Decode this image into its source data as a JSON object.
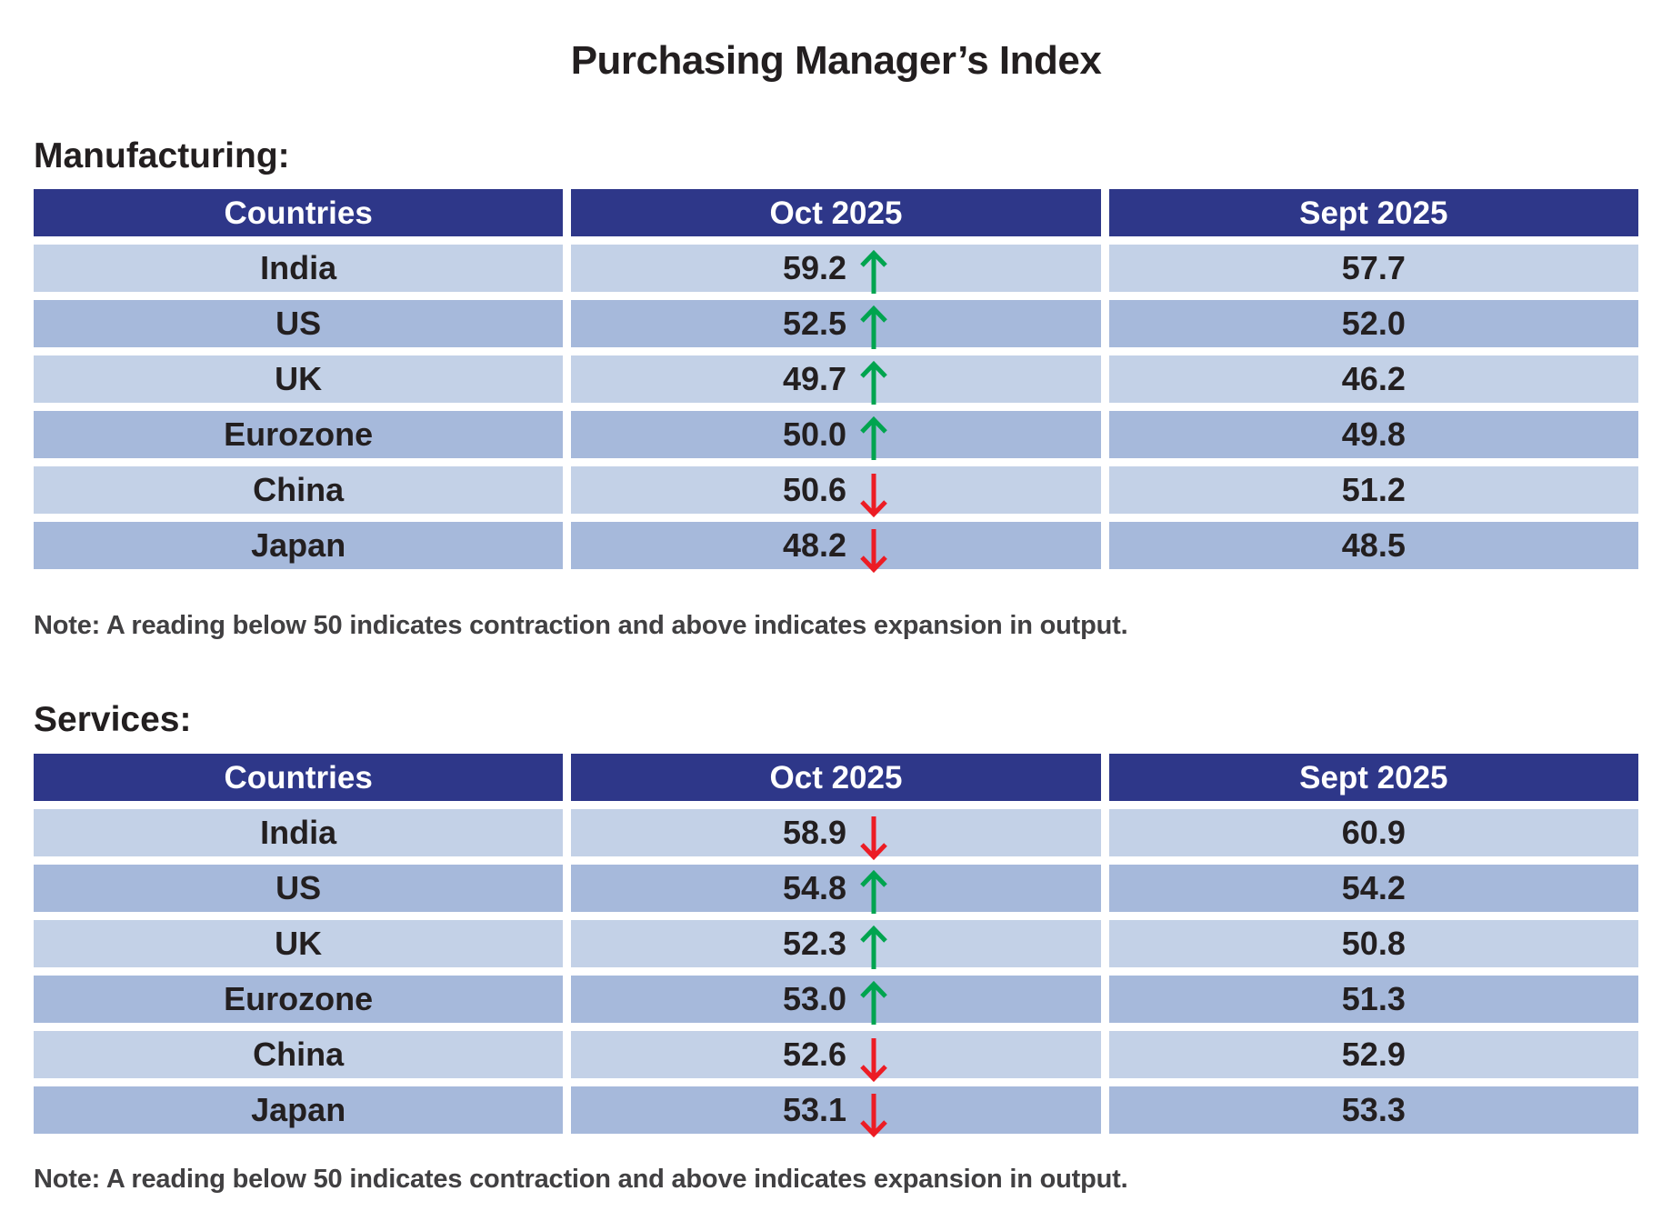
{
  "page": {
    "title": "Purchasing Manager’s Index"
  },
  "colors": {
    "header_bg": "#2E3789",
    "row_light": "#C3D1E7",
    "row_dark": "#A6B9DB",
    "arrow_up": "#00A44F",
    "arrow_down": "#EC1C24",
    "text_dark": "#231F20",
    "note_gray": "#414042"
  },
  "columns": [
    "Countries",
    "Oct 2025",
    "Sept 2025"
  ],
  "sections": [
    {
      "label": "Manufacturing:",
      "note": "Note: A reading below 50 indicates contraction and above indicates expansion in output.",
      "rows": [
        {
          "country": "India",
          "oct": "59.2",
          "trend": "up",
          "sept": "57.7"
        },
        {
          "country": "US",
          "oct": "52.5",
          "trend": "up",
          "sept": "52.0"
        },
        {
          "country": "UK",
          "oct": "49.7",
          "trend": "up",
          "sept": "46.2"
        },
        {
          "country": "Eurozone",
          "oct": "50.0",
          "trend": "up",
          "sept": "49.8"
        },
        {
          "country": "China",
          "oct": "50.6",
          "trend": "down",
          "sept": "51.2"
        },
        {
          "country": "Japan",
          "oct": "48.2",
          "trend": "down",
          "sept": "48.5"
        }
      ]
    },
    {
      "label": "Services:",
      "note": "Note: A reading below 50 indicates contraction and above indicates expansion in output.",
      "rows": [
        {
          "country": "India",
          "oct": "58.9",
          "trend": "down",
          "sept": "60.9"
        },
        {
          "country": "US",
          "oct": "54.8",
          "trend": "up",
          "sept": "54.2"
        },
        {
          "country": "UK",
          "oct": "52.3",
          "trend": "up",
          "sept": "50.8"
        },
        {
          "country": "Eurozone",
          "oct": "53.0",
          "trend": "up",
          "sept": "51.3"
        },
        {
          "country": "China",
          "oct": "52.6",
          "trend": "down",
          "sept": "52.9"
        },
        {
          "country": "Japan",
          "oct": "53.1",
          "trend": "down",
          "sept": "53.3"
        }
      ]
    }
  ],
  "chart_data": [
    {
      "type": "table",
      "title": "Purchasing Manager’s Index — Manufacturing",
      "columns": [
        "Countries",
        "Oct 2025",
        "Sept 2025"
      ],
      "rows": [
        [
          "India",
          59.2,
          57.7
        ],
        [
          "US",
          52.5,
          52.0
        ],
        [
          "UK",
          49.7,
          46.2
        ],
        [
          "Eurozone",
          50.0,
          49.8
        ],
        [
          "China",
          50.6,
          51.2
        ],
        [
          "Japan",
          48.2,
          48.5
        ]
      ],
      "oct_trend": [
        "up",
        "up",
        "up",
        "up",
        "down",
        "down"
      ],
      "note": "Note: A reading below 50 indicates contraction and above indicates expansion in output."
    },
    {
      "type": "table",
      "title": "Purchasing Manager’s Index — Services",
      "columns": [
        "Countries",
        "Oct 2025",
        "Sept 2025"
      ],
      "rows": [
        [
          "India",
          58.9,
          60.9
        ],
        [
          "US",
          54.8,
          54.2
        ],
        [
          "UK",
          52.3,
          50.8
        ],
        [
          "Eurozone",
          53.0,
          51.3
        ],
        [
          "China",
          52.6,
          52.9
        ],
        [
          "Japan",
          53.1,
          53.3
        ]
      ],
      "oct_trend": [
        "down",
        "up",
        "up",
        "up",
        "down",
        "down"
      ],
      "note": "Note: A reading below 50 indicates contraction and above indicates expansion in output."
    }
  ]
}
